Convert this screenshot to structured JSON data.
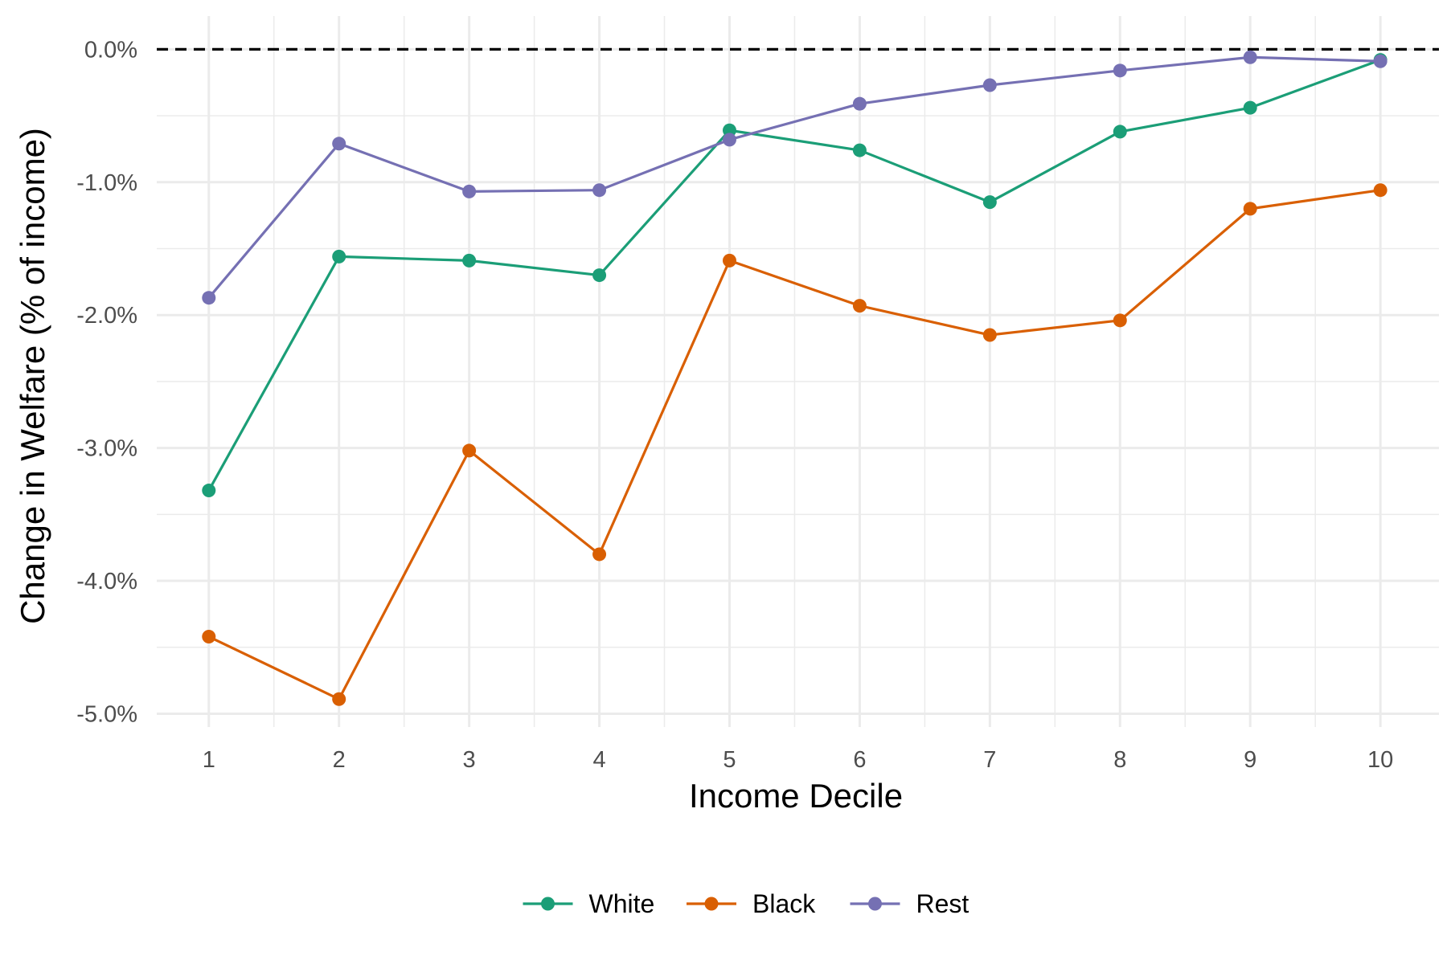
{
  "chart_data": {
    "type": "line",
    "title": "",
    "xlabel": "Income Decile",
    "ylabel": "Change in Welfare (% of income)",
    "x": [
      1,
      2,
      3,
      4,
      5,
      6,
      7,
      8,
      9,
      10
    ],
    "x_tick_labels": [
      "1",
      "2",
      "3",
      "4",
      "5",
      "6",
      "7",
      "8",
      "9",
      "10"
    ],
    "y_ticks": [
      0.0,
      -1.0,
      -2.0,
      -3.0,
      -4.0,
      -5.0
    ],
    "y_tick_labels": [
      "0.0%",
      "-1.0%",
      "-2.0%",
      "-3.0%",
      "-4.0%",
      "-5.0%"
    ],
    "xlim": [
      0.6,
      10.45
    ],
    "ylim": [
      -5.1,
      0.25
    ],
    "grid": true,
    "reference_line": {
      "y": 0.0,
      "style": "dashed",
      "color": "#000000"
    },
    "legend": {
      "position": "bottom"
    },
    "series": [
      {
        "name": "White",
        "color": "#1b9e77",
        "values": [
          -3.32,
          -1.56,
          -1.59,
          -1.7,
          -0.61,
          -0.76,
          -1.15,
          -0.62,
          -0.44,
          -0.08
        ]
      },
      {
        "name": "Black",
        "color": "#d95f02",
        "values": [
          -4.42,
          -4.89,
          -3.02,
          -3.8,
          -1.59,
          -1.93,
          -2.15,
          -2.04,
          -1.2,
          -1.06
        ]
      },
      {
        "name": "Rest",
        "color": "#7570b3",
        "values": [
          -1.87,
          -0.71,
          -1.07,
          -1.06,
          -0.68,
          -0.41,
          -0.27,
          -0.16,
          -0.06,
          -0.09
        ]
      }
    ]
  }
}
